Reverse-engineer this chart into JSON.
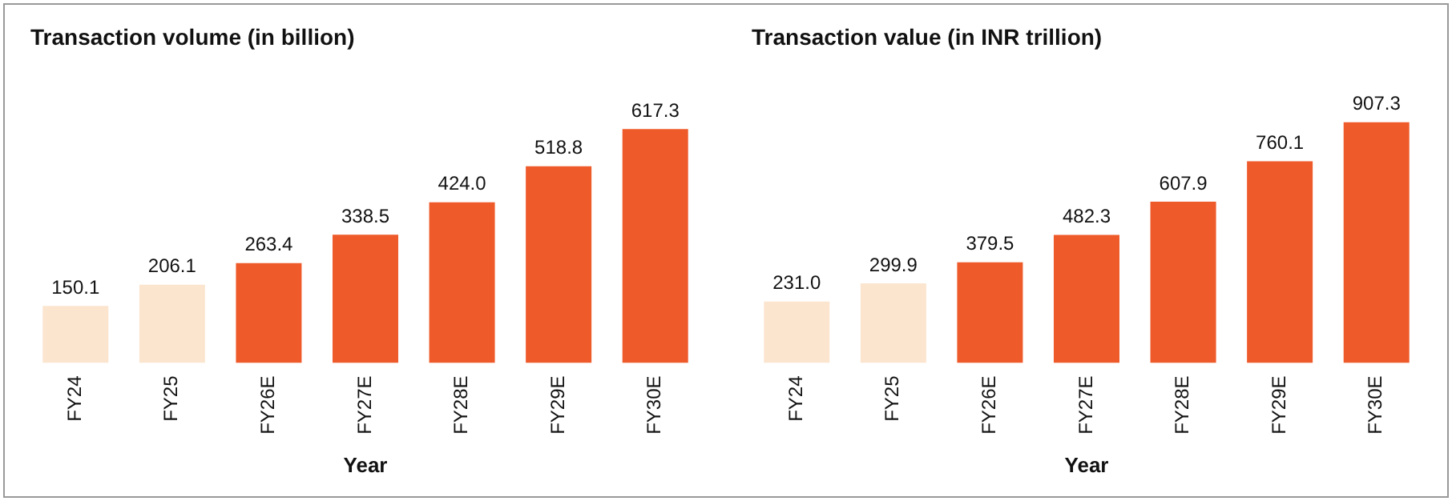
{
  "chart_data": [
    {
      "type": "bar",
      "title": "Transaction volume (in billion)",
      "xlabel": "Year",
      "categories": [
        "FY24",
        "FY25",
        "FY26E",
        "FY27E",
        "FY28E",
        "FY29E",
        "FY30E"
      ],
      "values": [
        150.1,
        206.1,
        263.4,
        338.5,
        424.0,
        518.8,
        617.3
      ],
      "colors": [
        "#fbe5cf",
        "#fbe5cf",
        "#ee5a2a",
        "#ee5a2a",
        "#ee5a2a",
        "#ee5a2a",
        "#ee5a2a"
      ],
      "value_labels": [
        "150.1",
        "206.1",
        "263.4",
        "338.5",
        "424.0",
        "518.8",
        "617.3"
      ],
      "legend": false,
      "grid": false,
      "tick_labels": "x"
    },
    {
      "type": "bar",
      "title": "Transaction value (in INR trillion)",
      "xlabel": "Year",
      "categories": [
        "FY24",
        "FY25",
        "FY26E",
        "FY27E",
        "FY28E",
        "FY29E",
        "FY30E"
      ],
      "values": [
        231.0,
        299.9,
        379.5,
        482.3,
        607.9,
        760.1,
        907.3
      ],
      "colors": [
        "#fbe5cf",
        "#fbe5cf",
        "#ee5a2a",
        "#ee5a2a",
        "#ee5a2a",
        "#ee5a2a",
        "#ee5a2a"
      ],
      "value_labels": [
        "231.0",
        "299.9",
        "379.5",
        "482.3",
        "607.9",
        "760.1",
        "907.3"
      ],
      "legend": false,
      "grid": false,
      "tick_labels": "x"
    }
  ]
}
